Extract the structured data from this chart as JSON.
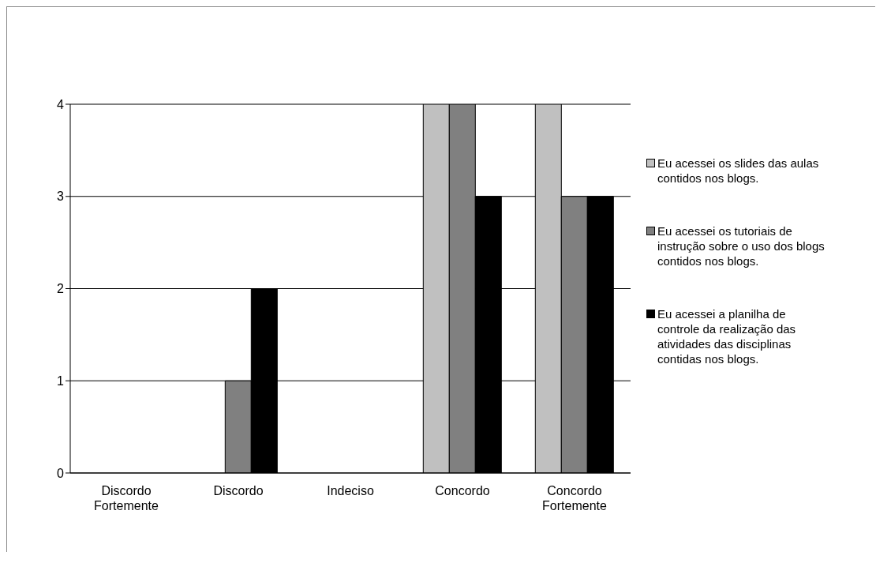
{
  "chart_data": {
    "type": "bar",
    "categories": [
      "Discordo Fortemente",
      "Discordo",
      "Indeciso",
      "Concordo",
      "Concordo Fortemente"
    ],
    "series": [
      {
        "name": "Eu acessei os slides das aulas contidos nos blogs.",
        "color": "#c0c0c0",
        "values": [
          0,
          0,
          0,
          4,
          4
        ]
      },
      {
        "name": "Eu acessei os tutoriais de instrução sobre o uso dos blogs contidos nos blogs.",
        "color": "#808080",
        "values": [
          0,
          1,
          0,
          4,
          3
        ]
      },
      {
        "name": "Eu acessei a planilha de controle da realização das atividades das disciplinas contidas nos blogs.",
        "color": "#000000",
        "values": [
          0,
          2,
          0,
          3,
          3
        ]
      }
    ],
    "ylim": [
      0,
      4
    ],
    "yticks": [
      0,
      1,
      2,
      3,
      4
    ],
    "grid": "y",
    "legend": "right"
  }
}
